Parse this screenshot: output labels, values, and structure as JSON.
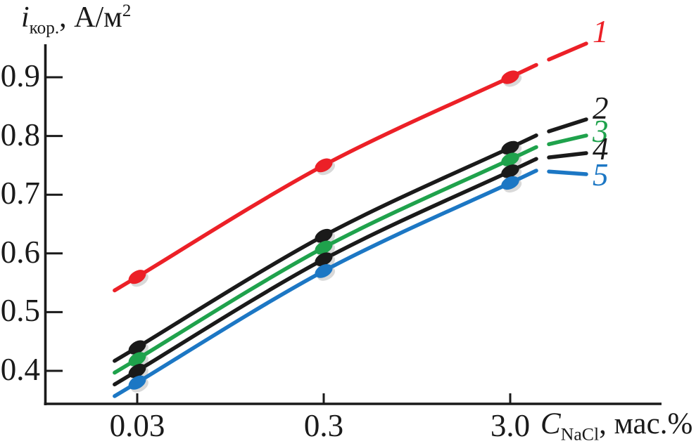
{
  "figure": {
    "background": "#ffffff",
    "axis_color": "#1a1a1a"
  },
  "chart_data": {
    "type": "line",
    "title": "",
    "x_scale": "log",
    "x": [
      0.03,
      0.3,
      3.0
    ],
    "x_tick_labels": [
      "0.03",
      "0.3",
      "3.0"
    ],
    "y_ticks": [
      0.9,
      0.8,
      0.7,
      0.6,
      0.5,
      0.4
    ],
    "y_tick_labels": [
      "0.9",
      "0.8",
      "0.7",
      "0.6",
      "0.5",
      "0.4"
    ],
    "ylim": [
      0.35,
      0.95
    ],
    "grid": false,
    "xlabel": "C_NaCl, мас.%",
    "xlabel_parts": {
      "symbol": "C",
      "subscript": "NaCl",
      "rest": ", мас.%"
    },
    "ylabel": "i_кор., А/м²",
    "ylabel_parts": {
      "symbol": "i",
      "subscript": "кор.",
      "rest": ", А/м",
      "superscript": "2"
    },
    "legend_position": "right-end-labels",
    "series": [
      {
        "name": "1",
        "color": "#EC2027",
        "values": [
          0.56,
          0.75,
          0.9
        ]
      },
      {
        "name": "2",
        "color": "#1A1A1A",
        "values": [
          0.44,
          0.63,
          0.78
        ]
      },
      {
        "name": "3",
        "color": "#1FA24C",
        "values": [
          0.42,
          0.61,
          0.76
        ]
      },
      {
        "name": "4",
        "color": "#1A1A1A",
        "values": [
          0.4,
          0.59,
          0.74
        ]
      },
      {
        "name": "5",
        "color": "#1C77C4",
        "values": [
          0.38,
          0.57,
          0.72
        ]
      }
    ]
  }
}
